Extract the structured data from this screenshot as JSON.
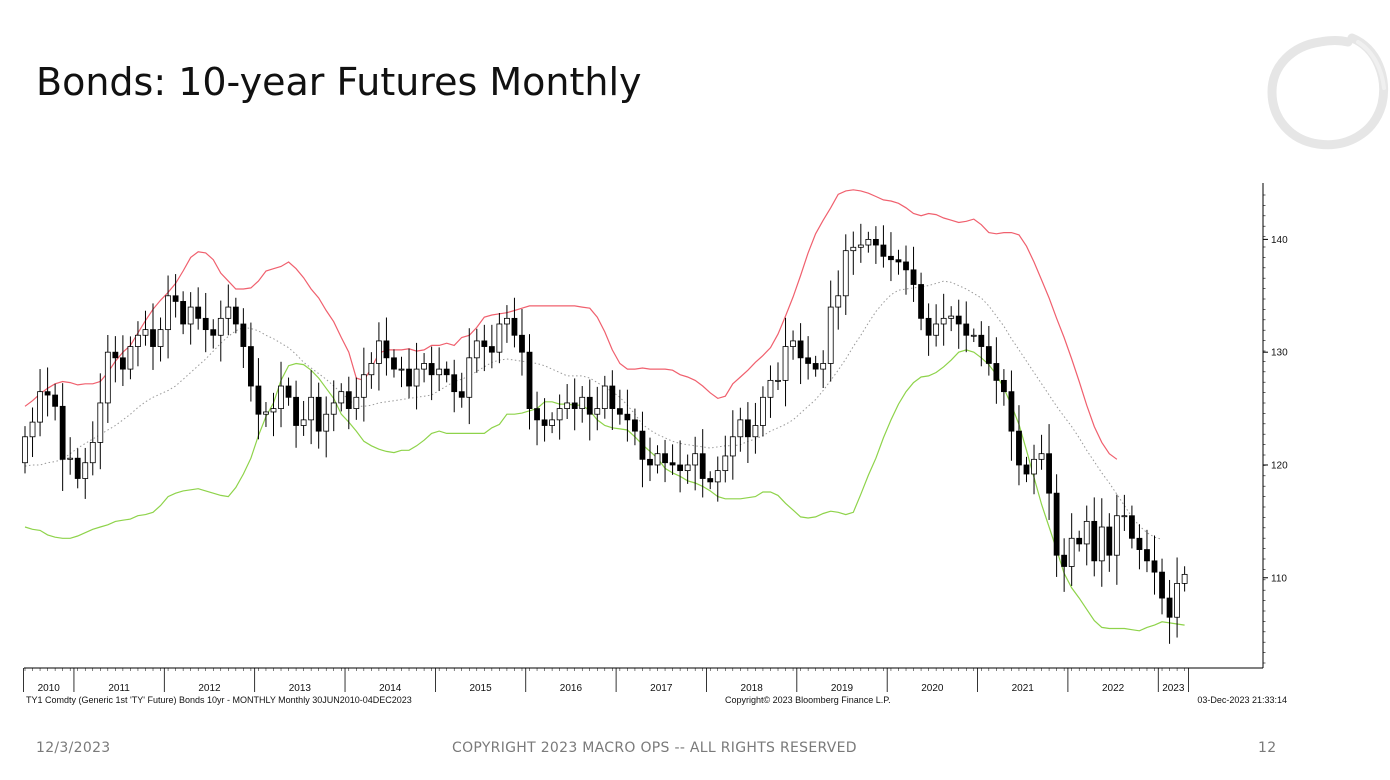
{
  "slide": {
    "title": "Bonds: 10-year Futures Monthly",
    "footer_date": "12/3/2023",
    "footer_copyright": "COPYRIGHT 2023 MACRO OPS -- ALL RIGHTS RESERVED",
    "page_number": "12",
    "logo_icon": "brush-circle-icon"
  },
  "chart_data": {
    "type": "candlestick",
    "title": "",
    "source_left": "TY1 Comdty (Generic 1st 'TY' Future) Bonds 10yr - MONTHLY  Monthly 30JUN2010-04DEC2023",
    "source_mid": "Copyright© 2023 Bloomberg Finance L.P.",
    "source_right": "03-Dec-2023 21:33:14",
    "x_start": "2010-06",
    "year_labels": [
      "2010",
      "2011",
      "2012",
      "2013",
      "2014",
      "2015",
      "2016",
      "2017",
      "2018",
      "2019",
      "2020",
      "2021",
      "2022",
      "2023"
    ],
    "y_axis": {
      "side": "right",
      "ylim": [
        102,
        145
      ],
      "ticks": [
        110,
        120,
        130,
        140
      ]
    },
    "colors": {
      "up_candle_fill": "#ffffff",
      "down_candle_fill": "#000000",
      "upper_band": "#f0606e",
      "lower_band": "#8ed34a",
      "middle_band": "#999999"
    },
    "closes": [
      122.5,
      123.8,
      126.5,
      126.2,
      125.2,
      120.5,
      120.6,
      118.8,
      120.2,
      122,
      125.5,
      130,
      129.5,
      128.5,
      130.5,
      131.5,
      132,
      130.5,
      132,
      135,
      134.5,
      132.5,
      134,
      133,
      132,
      131.5,
      133,
      134,
      132.5,
      130.5,
      127,
      124.5,
      124.7,
      125,
      127,
      126,
      123.5,
      124,
      126,
      123,
      124.5,
      125.5,
      126.5,
      125,
      126,
      128,
      129,
      131,
      129.5,
      128.5,
      128.5,
      127,
      128.5,
      129,
      128,
      128.5,
      128,
      126.5,
      126,
      129.5,
      131,
      130.5,
      130,
      132.5,
      133,
      131.5,
      130,
      125,
      124,
      123.5,
      124,
      125,
      125.5,
      125,
      126,
      124.5,
      125,
      127,
      125,
      124.5,
      124,
      123,
      120.5,
      120,
      121,
      120.2,
      120,
      119.5,
      120,
      121,
      118.8,
      118.5,
      119.5,
      120.8,
      122.5,
      124,
      122.5,
      123.5,
      126,
      127.5,
      127.5,
      130.5,
      131,
      129.5,
      129,
      128.5,
      129,
      134,
      135,
      139,
      139.3,
      139.5,
      140,
      139.5,
      138.5,
      138.2,
      138,
      137.3,
      136,
      133,
      131.5,
      132.5,
      133,
      133.2,
      132.5,
      131.5,
      131.5,
      130.5,
      129,
      127.5,
      126.5,
      123,
      120,
      119.2,
      120.5,
      121,
      117.5,
      112,
      111,
      113.5,
      113,
      115,
      111.5,
      114.5,
      112,
      115.5,
      115.5,
      113.5,
      112.5,
      111.5,
      110.5,
      108.2,
      106.5,
      109.5,
      110.3
    ],
    "series": [
      {
        "name": "",
        "role": "upper_band",
        "values": [
          125.2,
          125.7,
          126.3,
          126.8,
          127.2,
          127.4,
          127.3,
          127.1,
          127.2,
          127.2,
          127.4,
          128.2,
          129.2,
          130,
          130.6,
          131.7,
          132.8,
          133.8,
          134.6,
          135.3,
          136.1,
          137.2,
          138.4,
          138.9,
          138.8,
          138.2,
          137,
          136.3,
          135.6,
          135.6,
          135.7,
          136.3,
          137.2,
          137.4,
          137.6,
          138,
          137.4,
          136.6,
          135.6,
          134.8,
          133.7,
          132.7,
          131.3,
          130,
          127.7,
          127.5,
          128.6,
          129.9,
          130.2,
          130.2,
          130.2,
          130.3,
          130.1,
          130.2,
          130.6,
          130.6,
          130.8,
          130.6,
          131.3,
          131.5,
          132.2,
          133.1,
          133.3,
          133.4,
          133.5,
          133.7,
          133.9,
          134.1,
          134.1,
          134.1,
          134.1,
          134.1,
          134.1,
          134.1,
          134,
          133.9,
          133.1,
          131.8,
          130.2,
          129,
          128.5,
          128.5,
          128.6,
          128.5,
          128.5,
          128.5,
          128.4,
          128,
          127.8,
          127.5,
          127,
          126.4,
          125.9,
          126.1,
          127.2,
          127.8,
          128.4,
          129.1,
          129.7,
          130.4,
          131.6,
          133.2,
          134.9,
          136.8,
          138.8,
          140.5,
          141.7,
          142.8,
          144,
          144.3,
          144.4,
          144.3,
          144.1,
          143.8,
          143.5,
          143.4,
          143.2,
          142.8,
          142.3,
          142.1,
          142.3,
          142.2,
          141.9,
          141.7,
          141.5,
          141.6,
          141.8,
          141.3,
          140.6,
          140.5,
          140.6,
          140.6,
          140.4,
          139.4,
          138,
          136.4,
          134.8,
          133,
          131.3,
          129.4,
          127.4,
          125.3,
          123.4,
          122,
          121,
          120.5
        ]
      },
      {
        "name": "",
        "role": "middle_band",
        "values": [
          119.9,
          120,
          120,
          120.2,
          120.3,
          120.5,
          121,
          121.5,
          121.9,
          122.3,
          122.7,
          123.1,
          123.5,
          124,
          124.5,
          125.1,
          125.6,
          126,
          126.3,
          126.6,
          127,
          127.6,
          128.2,
          128.8,
          129.4,
          130.1,
          130.8,
          131.4,
          131.9,
          132.2,
          132.1,
          131.9,
          131.5,
          131.2,
          130.8,
          130.4,
          129.8,
          129.1,
          128.6,
          128.1,
          127.6,
          127,
          126.4,
          125.8,
          125.2,
          125.2,
          125.3,
          125.5,
          125.6,
          125.7,
          125.8,
          125.9,
          126,
          126.1,
          126.2,
          126.6,
          127,
          127.4,
          127.6,
          127.9,
          128.3,
          128.7,
          129.1,
          129.3,
          129.4,
          129.3,
          129.2,
          129.1,
          129,
          128.8,
          128.5,
          128.2,
          127.9,
          127.9,
          127.9,
          127.7,
          127.3,
          126.9,
          126.5,
          126,
          125.3,
          124.5,
          123.6,
          123.1,
          122.7,
          122.4,
          122.1,
          121.9,
          121.8,
          121.7,
          121.6,
          121.5,
          121.6,
          121.7,
          121.7,
          121.8,
          122.1,
          122.3,
          122.6,
          123,
          123.3,
          123.6,
          124,
          124.6,
          125.2,
          125.8,
          126.6,
          127.5,
          128.4,
          129.4,
          130.5,
          131.5,
          132.6,
          133.6,
          134.4,
          135.1,
          135.5,
          135.6,
          135.7,
          135.8,
          135.9,
          136.1,
          136.3,
          136.2,
          135.9,
          135.6,
          135.2,
          134.8,
          134.1,
          133.2,
          132.3,
          131.2,
          130.2,
          129.2,
          128.2,
          127.2,
          126.2,
          125.2,
          124.3,
          123.4,
          122.4,
          121.3,
          120.3,
          119.3,
          118.4,
          117.4,
          116.4,
          115.4,
          114.6,
          114,
          113.6,
          113.4
        ]
      },
      {
        "name": "",
        "role": "lower_band",
        "values": [
          114.5,
          114.3,
          114.2,
          113.8,
          113.6,
          113.5,
          113.5,
          113.7,
          114,
          114.3,
          114.5,
          114.7,
          115,
          115.1,
          115.2,
          115.5,
          115.6,
          115.8,
          116.4,
          117.2,
          117.5,
          117.7,
          117.8,
          117.9,
          117.7,
          117.5,
          117.3,
          117.2,
          118,
          119.2,
          120.6,
          122.6,
          124.3,
          125.5,
          127.5,
          128.8,
          129,
          128.9,
          128.4,
          127.7,
          126.8,
          125.9,
          124.5,
          123.8,
          123,
          122.1,
          121.7,
          121.4,
          121.2,
          121.1,
          121.3,
          121.3,
          121.7,
          122.2,
          122.8,
          123,
          122.8,
          122.8,
          122.8,
          122.8,
          122.8,
          122.8,
          123.3,
          123.6,
          124.5,
          124.5,
          124.6,
          124.8,
          125,
          125.6,
          125.6,
          125.4,
          125.4,
          125.3,
          125.3,
          124.8,
          124,
          123.5,
          123.3,
          123.2,
          123.1,
          122.5,
          121.8,
          121.2,
          120.6,
          119.7,
          119.3,
          119,
          118.6,
          118.4,
          118.1,
          117.7,
          117.2,
          117,
          117,
          117,
          117.1,
          117.2,
          117.6,
          117.6,
          117.3,
          116.6,
          116,
          115.4,
          115.3,
          115.4,
          115.7,
          115.9,
          115.8,
          115.6,
          115.8,
          117.4,
          119.1,
          120.6,
          122.4,
          124,
          125.4,
          126.5,
          127.3,
          127.8,
          127.9,
          128.2,
          128.7,
          129.3,
          130,
          130.2,
          130,
          129.5,
          128.9,
          128,
          126.8,
          125.3,
          123.6,
          121.3,
          118.9,
          116.5,
          114.5,
          112.5,
          110.4,
          109.1,
          108.2,
          107.2,
          106.2,
          105.6,
          105.5,
          105.5,
          105.5,
          105.4,
          105.3,
          105.6,
          105.8,
          106.1,
          106,
          105.9,
          105.8
        ]
      }
    ]
  }
}
